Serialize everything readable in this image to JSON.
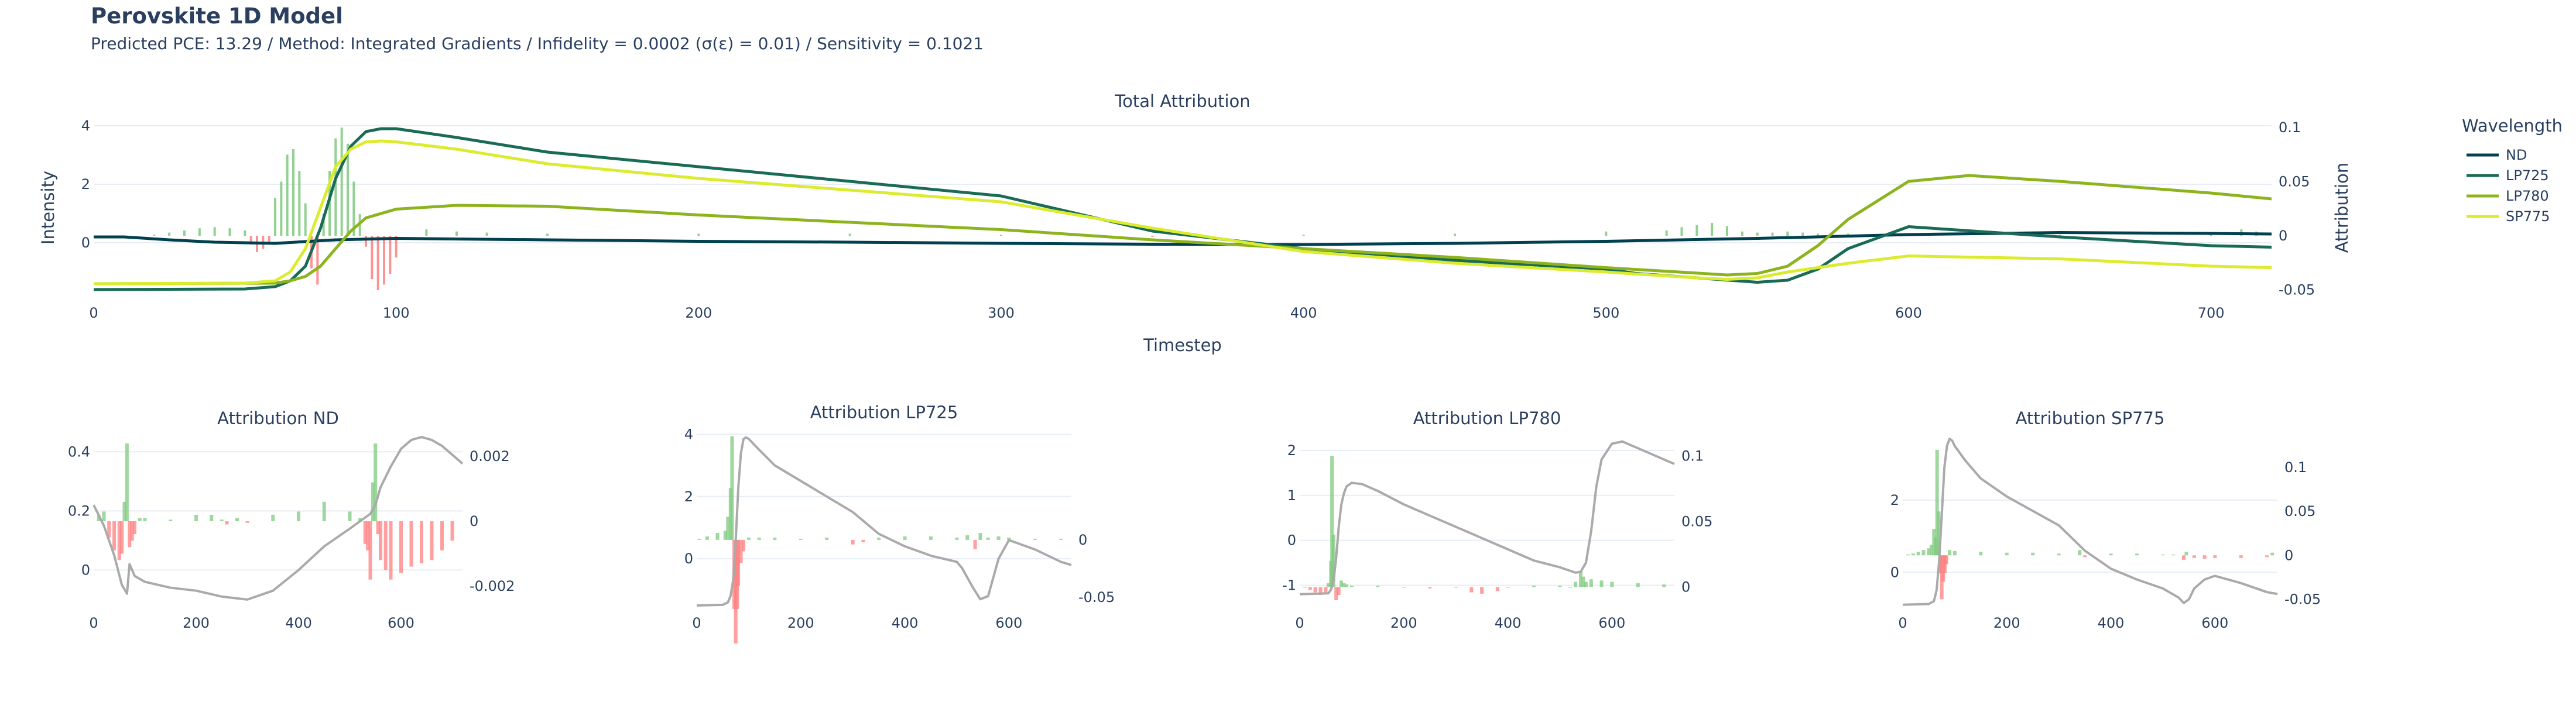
{
  "header": {
    "title": "Perovskite 1D Model",
    "subtitle": "Predicted PCE: 13.29 / Method: Integrated Gradients / Infidelity = 0.0002 (σ(ε) = 0.01) / Sensitivity = 0.1021"
  },
  "colors": {
    "positive_bar": "#7fc97f",
    "negative_bar": "#ff7f7f",
    "shadow_line": "#aaaaaa",
    "ND": "#00404f",
    "LP725": "#1a6b55",
    "LP780": "#8db41f",
    "SP775": "#dbec2f"
  },
  "chart_data": [
    {
      "id": "main",
      "type": "line",
      "title": "Total Attribution",
      "xlabel": "Timestep",
      "ylabel": "Intensity",
      "y2label": "Attribution",
      "xlim": [
        0,
        720
      ],
      "ylim": [
        -1.8,
        4.2
      ],
      "y2lim": [
        -0.055,
        0.107
      ],
      "xticks": [
        0,
        100,
        200,
        300,
        400,
        500,
        600,
        700
      ],
      "yticks": [
        0,
        2,
        4
      ],
      "y2ticks": [
        -0.05,
        0,
        0.05,
        0.1
      ],
      "legend": {
        "title": "Wavelength",
        "position": "right",
        "entries": [
          "ND",
          "LP725",
          "LP780",
          "SP775"
        ]
      },
      "series": [
        {
          "name": "ND",
          "axis": "y",
          "x": [
            0,
            10,
            25,
            40,
            60,
            80,
            100,
            150,
            200,
            250,
            300,
            350,
            400,
            450,
            500,
            550,
            600,
            650,
            700,
            720
          ],
          "y": [
            0.2,
            0.2,
            0.1,
            0.02,
            -0.02,
            0.1,
            0.15,
            0.1,
            0.05,
            0.02,
            -0.02,
            -0.05,
            -0.06,
            -0.02,
            0.05,
            0.15,
            0.28,
            0.35,
            0.32,
            0.3
          ]
        },
        {
          "name": "LP725",
          "axis": "y",
          "x": [
            0,
            50,
            60,
            65,
            70,
            75,
            80,
            85,
            90,
            95,
            100,
            120,
            150,
            200,
            250,
            300,
            350,
            400,
            450,
            500,
            510,
            530,
            550,
            560,
            570,
            580,
            600,
            650,
            700,
            720
          ],
          "y": [
            -1.6,
            -1.58,
            -1.5,
            -1.3,
            -0.8,
            0.5,
            2.2,
            3.3,
            3.8,
            3.9,
            3.9,
            3.6,
            3.1,
            2.6,
            2.1,
            1.6,
            0.4,
            -0.2,
            -0.6,
            -0.9,
            -1.05,
            -1.2,
            -1.35,
            -1.28,
            -0.9,
            -0.2,
            0.55,
            0.2,
            -0.1,
            -0.15
          ]
        },
        {
          "name": "LP780",
          "axis": "y",
          "x": [
            0,
            60,
            65,
            70,
            75,
            80,
            85,
            90,
            100,
            120,
            150,
            200,
            250,
            300,
            350,
            400,
            450,
            500,
            540,
            550,
            560,
            570,
            580,
            600,
            620,
            650,
            700,
            720
          ],
          "y": [
            -1.4,
            -1.38,
            -1.3,
            -1.15,
            -0.8,
            -0.2,
            0.4,
            0.85,
            1.15,
            1.28,
            1.25,
            0.95,
            0.7,
            0.45,
            0.1,
            -0.2,
            -0.5,
            -0.85,
            -1.1,
            -1.05,
            -0.8,
            -0.1,
            0.8,
            2.1,
            2.3,
            2.1,
            1.7,
            1.5
          ]
        },
        {
          "name": "SP775",
          "axis": "y",
          "x": [
            0,
            50,
            60,
            65,
            70,
            75,
            80,
            85,
            90,
            95,
            100,
            120,
            150,
            200,
            250,
            300,
            350,
            400,
            450,
            500,
            530,
            540,
            550,
            560,
            580,
            600,
            650,
            700,
            720
          ],
          "y": [
            -1.4,
            -1.38,
            -1.3,
            -1.0,
            -0.2,
            1.2,
            2.6,
            3.2,
            3.45,
            3.48,
            3.45,
            3.2,
            2.7,
            2.2,
            1.8,
            1.4,
            0.5,
            -0.3,
            -0.7,
            -1.0,
            -1.2,
            -1.25,
            -1.2,
            -1.0,
            -0.7,
            -0.45,
            -0.55,
            -0.8,
            -0.85
          ]
        },
        {
          "name": "attribution",
          "axis": "y2",
          "type": "bar",
          "x": [
            20,
            25,
            30,
            35,
            40,
            45,
            50,
            52,
            54,
            56,
            58,
            60,
            62,
            64,
            66,
            68,
            70,
            72,
            74,
            76,
            78,
            80,
            82,
            84,
            86,
            88,
            90,
            92,
            94,
            96,
            98,
            100,
            110,
            120,
            130,
            150,
            200,
            250,
            300,
            350,
            400,
            450,
            500,
            520,
            525,
            530,
            535,
            540,
            545,
            550,
            555,
            560,
            565,
            570,
            580,
            600,
            650,
            700,
            710,
            715
          ],
          "y": [
            0.001,
            0.003,
            0.005,
            0.007,
            0.008,
            0.007,
            0.005,
            -0.008,
            -0.015,
            -0.012,
            -0.006,
            0.035,
            0.05,
            0.075,
            0.08,
            0.06,
            0.03,
            -0.03,
            -0.045,
            0.02,
            0.06,
            0.09,
            0.1,
            0.085,
            0.05,
            0.02,
            -0.01,
            -0.04,
            -0.05,
            -0.045,
            -0.035,
            -0.02,
            0.006,
            0.004,
            0.003,
            0.002,
            0.002,
            0.002,
            0.001,
            -0.001,
            0.001,
            0.002,
            0.004,
            0.005,
            0.008,
            0.01,
            0.012,
            0.009,
            0.004,
            0.003,
            0.003,
            0.004,
            0.003,
            0.002,
            0.002,
            0.001,
            0.001,
            0.001,
            0.006,
            0.004
          ]
        }
      ]
    },
    {
      "id": "sub1",
      "type": "bar",
      "title": "Attribution ND",
      "xlim": [
        0,
        720
      ],
      "ylim": [
        -0.12,
        0.45
      ],
      "y2lim": [
        -0.0026,
        0.0026
      ],
      "xticks": [
        0,
        200,
        400,
        600
      ],
      "yticks": [
        0,
        0.2,
        0.4
      ],
      "y2ticks": [
        -0.002,
        0,
        0.002
      ],
      "line": {
        "x": [
          0,
          20,
          40,
          55,
          65,
          70,
          80,
          100,
          150,
          200,
          250,
          300,
          350,
          400,
          450,
          500,
          540,
          550,
          560,
          580,
          600,
          620,
          640,
          660,
          680,
          700,
          720
        ],
        "y": [
          0.22,
          0.15,
          0.05,
          -0.05,
          -0.08,
          0.02,
          -0.02,
          -0.04,
          -0.06,
          -0.07,
          -0.09,
          -0.1,
          -0.07,
          0.0,
          0.08,
          0.14,
          0.19,
          0.22,
          0.28,
          0.35,
          0.41,
          0.44,
          0.45,
          0.44,
          0.42,
          0.39,
          0.36
        ]
      },
      "bars": {
        "x": [
          10,
          20,
          30,
          40,
          50,
          55,
          60,
          65,
          70,
          75,
          80,
          90,
          100,
          150,
          200,
          230,
          250,
          260,
          280,
          300,
          350,
          400,
          450,
          500,
          520,
          530,
          535,
          540,
          545,
          550,
          555,
          560,
          570,
          580,
          600,
          620,
          640,
          660,
          680,
          700
        ],
        "y": [
          0.0002,
          0.0003,
          -0.0005,
          -0.0009,
          -0.0012,
          -0.001,
          0.0006,
          0.0024,
          -0.0008,
          -0.0006,
          -0.0004,
          0.0001,
          0.0001,
          5e-05,
          0.0002,
          0.0002,
          5e-05,
          -0.0001,
          0.0001,
          -5e-05,
          0.0002,
          0.0003,
          0.0006,
          0.0003,
          0.0001,
          -0.0007,
          -0.0009,
          -0.0018,
          0.0012,
          0.0024,
          -0.0004,
          -0.0012,
          -0.0015,
          -0.0018,
          -0.0016,
          -0.0014,
          -0.0013,
          -0.0012,
          -0.0009,
          -0.0006
        ]
      }
    },
    {
      "id": "sub2",
      "type": "bar",
      "title": "Attribution LP725",
      "xlim": [
        0,
        720
      ],
      "ylim": [
        -1.5,
        4.1
      ],
      "y2lim": [
        -0.057,
        0.0945
      ],
      "xticks": [
        0,
        200,
        400,
        600
      ],
      "yticks": [
        0,
        2,
        4
      ],
      "y2ticks": [
        -0.05,
        0
      ],
      "line": {
        "x": [
          0,
          50,
          60,
          65,
          70,
          75,
          80,
          85,
          90,
          95,
          100,
          120,
          150,
          200,
          250,
          300,
          350,
          400,
          450,
          500,
          510,
          530,
          545,
          560,
          570,
          580,
          600,
          650,
          700,
          720
        ],
        "y": [
          -1.5,
          -1.48,
          -1.4,
          -1.2,
          -0.7,
          0.6,
          2.3,
          3.4,
          3.85,
          3.9,
          3.85,
          3.5,
          3.0,
          2.5,
          2.0,
          1.5,
          0.8,
          0.4,
          0.1,
          -0.1,
          -0.3,
          -0.9,
          -1.3,
          -1.2,
          -0.6,
          0.0,
          0.6,
          0.3,
          -0.1,
          -0.2
        ]
      },
      "bars": {
        "x": [
          5,
          20,
          40,
          55,
          60,
          65,
          68,
          72,
          75,
          78,
          80,
          85,
          90,
          100,
          120,
          150,
          200,
          250,
          300,
          320,
          350,
          400,
          450,
          500,
          520,
          535,
          545,
          560,
          580,
          600,
          650,
          700
        ],
        "y": [
          0.001,
          0.003,
          0.006,
          0.008,
          0.02,
          0.045,
          0.09,
          -0.06,
          -0.09,
          -0.06,
          -0.04,
          -0.02,
          -0.01,
          0.002,
          0.002,
          0.002,
          0.001,
          0.002,
          -0.004,
          -0.002,
          0.002,
          0.003,
          0.003,
          0.002,
          0.004,
          -0.008,
          0.006,
          0.002,
          0.003,
          0.002,
          0.001,
          0.001
        ]
      }
    },
    {
      "id": "sub3",
      "type": "bar",
      "title": "Attribution LP780",
      "xlim": [
        0,
        720
      ],
      "ylim": [
        -1.45,
        2.3
      ],
      "y2lim": [
        -0.014,
        0.1144
      ],
      "xticks": [
        0,
        200,
        400,
        600
      ],
      "yticks": [
        -1,
        0,
        1,
        2
      ],
      "y2ticks": [
        0,
        0.05,
        0.1
      ],
      "line": {
        "x": [
          0,
          55,
          60,
          65,
          70,
          75,
          80,
          85,
          90,
          100,
          120,
          150,
          200,
          250,
          300,
          350,
          400,
          450,
          500,
          530,
          540,
          550,
          560,
          570,
          580,
          600,
          620,
          650,
          700,
          720
        ],
        "y": [
          -1.2,
          -1.18,
          -1.1,
          -0.9,
          -0.4,
          0.3,
          0.8,
          1.05,
          1.2,
          1.28,
          1.25,
          1.1,
          0.8,
          0.55,
          0.3,
          0.05,
          -0.2,
          -0.45,
          -0.6,
          -0.72,
          -0.7,
          -0.5,
          0.2,
          1.2,
          1.8,
          2.15,
          2.2,
          2.05,
          1.8,
          1.7
        ]
      },
      "bars": {
        "x": [
          10,
          20,
          30,
          40,
          50,
          55,
          60,
          62,
          65,
          70,
          75,
          80,
          85,
          90,
          100,
          150,
          200,
          250,
          300,
          330,
          350,
          380,
          400,
          450,
          500,
          520,
          530,
          540,
          545,
          550,
          560,
          580,
          600,
          650,
          700
        ],
        "y": [
          0.0,
          -0.002,
          -0.004,
          -0.006,
          -0.005,
          0.003,
          0.02,
          0.1,
          0.04,
          -0.01,
          -0.006,
          0.005,
          0.003,
          0.002,
          0.001,
          0.001,
          0.0,
          -0.001,
          0.0,
          -0.004,
          -0.005,
          -0.003,
          0.0,
          0.001,
          0.001,
          0.0,
          0.004,
          0.012,
          0.008,
          0.004,
          0.006,
          0.005,
          0.004,
          0.003,
          0.002
        ]
      }
    },
    {
      "id": "sub4",
      "type": "bar",
      "title": "Attribution SP775",
      "xlim": [
        0,
        720
      ],
      "ylim": [
        -0.92,
        3.75
      ],
      "y2lim": [
        -0.057,
        0.1345
      ],
      "xticks": [
        0,
        200,
        400,
        600
      ],
      "yticks": [
        0,
        2
      ],
      "y2ticks": [
        -0.05,
        0,
        0.05,
        0.1
      ],
      "line": {
        "x": [
          0,
          50,
          60,
          65,
          70,
          75,
          80,
          85,
          90,
          95,
          100,
          120,
          150,
          200,
          250,
          300,
          350,
          400,
          450,
          500,
          530,
          540,
          550,
          560,
          580,
          600,
          650,
          700,
          720
        ],
        "y": [
          -0.9,
          -0.88,
          -0.8,
          -0.5,
          0.3,
          1.6,
          2.9,
          3.5,
          3.7,
          3.65,
          3.5,
          3.1,
          2.6,
          2.1,
          1.7,
          1.3,
          0.6,
          0.1,
          -0.2,
          -0.45,
          -0.7,
          -0.85,
          -0.75,
          -0.45,
          -0.2,
          -0.1,
          -0.3,
          -0.55,
          -0.6
        ]
      },
      "bars": {
        "x": [
          10,
          20,
          30,
          40,
          50,
          55,
          60,
          63,
          66,
          69,
          72,
          75,
          78,
          81,
          84,
          90,
          100,
          150,
          200,
          250,
          300,
          340,
          350,
          400,
          450,
          500,
          520,
          540,
          545,
          560,
          580,
          600,
          650,
          700,
          710
        ],
        "y": [
          0.001,
          0.002,
          0.004,
          0.006,
          0.008,
          0.012,
          0.03,
          0.02,
          0.12,
          0.05,
          -0.02,
          -0.05,
          -0.03,
          -0.02,
          -0.01,
          0.006,
          0.005,
          0.004,
          0.003,
          0.003,
          0.002,
          0.006,
          -0.002,
          0.002,
          0.002,
          0.001,
          0.001,
          -0.005,
          0.004,
          -0.003,
          -0.004,
          -0.003,
          -0.003,
          -0.002,
          0.003
        ]
      }
    }
  ]
}
